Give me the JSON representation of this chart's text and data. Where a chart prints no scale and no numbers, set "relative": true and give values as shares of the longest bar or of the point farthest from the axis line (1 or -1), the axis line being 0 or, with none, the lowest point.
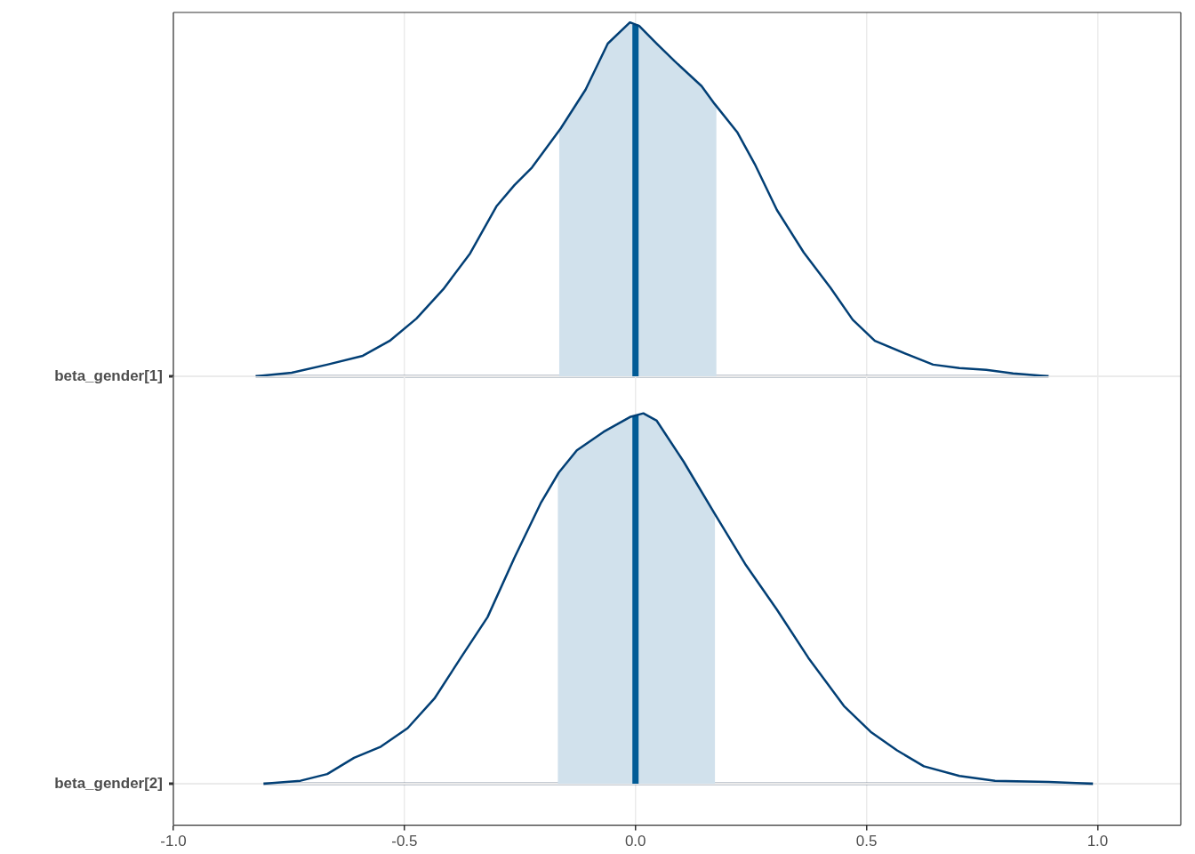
{
  "chart_data": [
    {
      "type": "line",
      "relative": true,
      "ylabel": "beta_gender[1]",
      "xlim": [
        -1.0,
        1.18
      ],
      "xticks": [
        -1,
        -0.5,
        0,
        0.5,
        1
      ],
      "tick_labels": "y",
      "grid": true,
      "marker": "none",
      "series": [
        {
          "color": "#023f75",
          "x": [
            -0.822,
            -0.744,
            -0.667,
            -0.59,
            -0.532,
            -0.474,
            -0.416,
            -0.358,
            -0.301,
            -0.262,
            -0.224,
            -0.162,
            -0.108,
            -0.06,
            -0.012,
            0.008,
            0.046,
            0.085,
            0.143,
            0.171,
            0.22,
            0.258,
            0.306,
            0.364,
            0.422,
            0.47,
            0.518,
            0.586,
            0.644,
            0.701,
            0.759,
            0.817,
            0.894
          ],
          "values": [
            0,
            0.01,
            0.033,
            0.058,
            0.1,
            0.163,
            0.246,
            0.347,
            0.48,
            0.54,
            0.59,
            0.7,
            0.81,
            0.94,
            1,
            0.99,
            0.94,
            0.89,
            0.82,
            0.77,
            0.69,
            0.6,
            0.47,
            0.35,
            0.25,
            0.16,
            0.1,
            0.063,
            0.033,
            0.023,
            0.018,
            0.008,
            0
          ]
        }
      ],
      "bands": [
        {
          "axis": "x",
          "from": -0.165,
          "to": 0.175,
          "color": "#d1e1ec"
        }
      ],
      "ref_lines": [
        {
          "axis": "x",
          "value": 0.0,
          "color": "#005b96"
        }
      ]
    },
    {
      "type": "line",
      "relative": true,
      "ylabel": "beta_gender[2]",
      "xlim": [
        -1.0,
        1.18
      ],
      "xticks": [
        {
          "value": -1,
          "label": "-1.0"
        },
        {
          "value": -0.5,
          "label": "-0.5"
        },
        {
          "value": 0,
          "label": "0.0"
        },
        {
          "value": 0.5,
          "label": "0.5"
        },
        {
          "value": 1,
          "label": "1.0"
        }
      ],
      "grid": true,
      "marker": "none",
      "series": [
        {
          "color": "#023f75",
          "x": [
            -0.805,
            -0.725,
            -0.667,
            -0.609,
            -0.551,
            -0.493,
            -0.435,
            -0.378,
            -0.32,
            -0.262,
            -0.204,
            -0.166,
            -0.127,
            -0.069,
            -0.012,
            0.017,
            0.046,
            0.104,
            0.171,
            0.239,
            0.306,
            0.374,
            0.451,
            0.509,
            0.566,
            0.624,
            0.701,
            0.778,
            0.894,
            0.99
          ],
          "values": [
            0,
            0.008,
            0.026,
            0.07,
            0.1,
            0.15,
            0.23,
            0.34,
            0.45,
            0.61,
            0.76,
            0.84,
            0.9,
            0.95,
            0.99,
            1,
            0.98,
            0.87,
            0.73,
            0.59,
            0.47,
            0.34,
            0.21,
            0.14,
            0.09,
            0.047,
            0.021,
            0.008,
            0.005,
            0
          ]
        }
      ],
      "bands": [
        {
          "axis": "x",
          "from": -0.168,
          "to": 0.172,
          "color": "#d1e1ec"
        }
      ],
      "ref_lines": [
        {
          "axis": "x",
          "value": 0.0,
          "color": "#005b96"
        }
      ]
    }
  ]
}
